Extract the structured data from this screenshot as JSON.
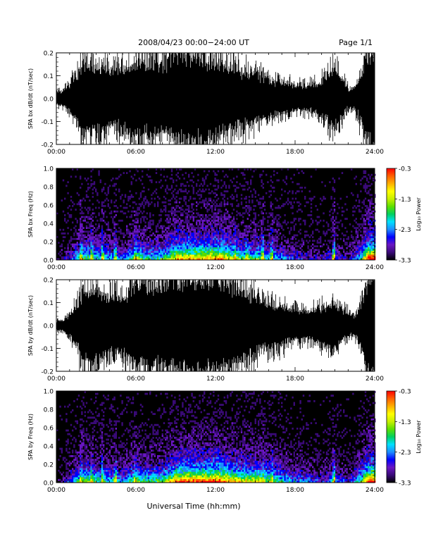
{
  "header": {
    "date_range": "2008/04/23  00:00−24:00 UT",
    "page": "Page 1/1"
  },
  "xaxis_label": "Universal Time (hh:mm)",
  "colors": {
    "waveform": "#000000",
    "spectrogram_background": "#000000",
    "colorbar": [
      "#000000",
      "#3a0a78",
      "#6a16c4",
      "#0000ff",
      "#1e8cff",
      "#00e0ff",
      "#00d060",
      "#5ce000",
      "#c8f000",
      "#ffff00",
      "#ffb000",
      "#ff6000",
      "#ff0000"
    ]
  },
  "chart_data": [
    {
      "type": "line",
      "panel": "bx-waveform",
      "ylabel": "SPA bx dB/dt (nT/sec)",
      "ylim": [
        -0.2,
        0.2
      ],
      "yticks": [
        "-0.2",
        "-0.1",
        "0.0",
        "0.1",
        "0.2"
      ],
      "xlim": [
        0,
        24
      ],
      "xticks": [
        "00:00",
        "06:00",
        "12:00",
        "18:00",
        "24:00"
      ],
      "envelope": {
        "hours": [
          0,
          0.5,
          1,
          1.5,
          2,
          3,
          4,
          5,
          6,
          7,
          8,
          9,
          10,
          11,
          12,
          13,
          14,
          15,
          16,
          17,
          18,
          19,
          20,
          21,
          22,
          22.5,
          23,
          23.5,
          24
        ],
        "amplitude": [
          0.03,
          0.04,
          0.07,
          0.12,
          0.19,
          0.17,
          0.15,
          0.16,
          0.2,
          0.19,
          0.18,
          0.23,
          0.23,
          0.21,
          0.2,
          0.17,
          0.14,
          0.13,
          0.1,
          0.08,
          0.07,
          0.06,
          0.09,
          0.16,
          0.05,
          0.05,
          0.12,
          0.25,
          0.25
        ]
      }
    },
    {
      "type": "heatmap",
      "panel": "bx-spectrogram",
      "ylabel": "SPA bx Freq (Hz)",
      "ylim": [
        0,
        1
      ],
      "yticks": [
        "0.0",
        "0.2",
        "0.4",
        "0.6",
        "0.8",
        "1.0"
      ],
      "xlim": [
        0,
        24
      ],
      "xticks": [
        "00:00",
        "06:00",
        "12:00",
        "18:00",
        "24:00"
      ],
      "colorbar_label": "Log₁₀ Power",
      "colorbar_ticks": [
        "-0.3",
        "-1.3",
        "-2.3",
        "-3.3"
      ],
      "zlim": [
        -3.3,
        -0.3
      ],
      "activity": {
        "hours": [
          0,
          1,
          2,
          3,
          4,
          5,
          6,
          7,
          8,
          9,
          10,
          11,
          12,
          13,
          14,
          15,
          16,
          17,
          18,
          19,
          20,
          21,
          22,
          23,
          23.5,
          24
        ],
        "level": [
          0.05,
          0.25,
          0.55,
          0.45,
          0.4,
          0.3,
          0.6,
          0.45,
          0.5,
          0.75,
          0.8,
          0.75,
          0.85,
          0.7,
          0.55,
          0.55,
          0.45,
          0.35,
          0.25,
          0.2,
          0.2,
          0.3,
          0.15,
          0.5,
          0.95,
          0.95
        ]
      },
      "bursts_hours": [
        1.8,
        2.6,
        3.4,
        4.4,
        5.9,
        9.1,
        10.0,
        10.8,
        11.9,
        12.7,
        13.4,
        14.3,
        15.5,
        16.2,
        20.9,
        23.2,
        23.7
      ]
    },
    {
      "type": "line",
      "panel": "by-waveform",
      "ylabel": "SPA by dB/dt (nT/sec)",
      "ylim": [
        -0.2,
        0.2
      ],
      "yticks": [
        "-0.2",
        "-0.1",
        "0.0",
        "0.1",
        "0.2"
      ],
      "xlim": [
        0,
        24
      ],
      "xticks": [
        "00:00",
        "06:00",
        "12:00",
        "18:00",
        "24:00"
      ],
      "envelope": {
        "hours": [
          0,
          0.5,
          1,
          1.5,
          2,
          3,
          4,
          5,
          6,
          7,
          8,
          9,
          10,
          11,
          12,
          13,
          14,
          15,
          16,
          17,
          18,
          19,
          20,
          21,
          22,
          22.5,
          23,
          23.5,
          24
        ],
        "amplitude": [
          0.02,
          0.03,
          0.05,
          0.1,
          0.18,
          0.2,
          0.15,
          0.15,
          0.22,
          0.23,
          0.2,
          0.25,
          0.25,
          0.25,
          0.25,
          0.22,
          0.18,
          0.15,
          0.12,
          0.1,
          0.08,
          0.07,
          0.09,
          0.12,
          0.06,
          0.05,
          0.12,
          0.25,
          0.25
        ]
      }
    },
    {
      "type": "heatmap",
      "panel": "by-spectrogram",
      "ylabel": "SPA by Freq (Hz)",
      "ylim": [
        0,
        1
      ],
      "yticks": [
        "0.0",
        "0.2",
        "0.4",
        "0.6",
        "0.8",
        "1.0"
      ],
      "xlim": [
        0,
        24
      ],
      "xticks": [
        "00:00",
        "06:00",
        "12:00",
        "18:00",
        "24:00"
      ],
      "colorbar_label": "Log₁₀ Power",
      "colorbar_ticks": [
        "-0.3",
        "-1.3",
        "-2.3",
        "-3.3"
      ],
      "zlim": [
        -3.3,
        -0.3
      ],
      "activity": {
        "hours": [
          0,
          1,
          2,
          3,
          4,
          5,
          6,
          7,
          8,
          9,
          10,
          11,
          12,
          13,
          14,
          15,
          16,
          17,
          18,
          19,
          20,
          21,
          22,
          23,
          23.5,
          24
        ],
        "level": [
          0.05,
          0.3,
          0.6,
          0.5,
          0.45,
          0.35,
          0.6,
          0.5,
          0.55,
          0.85,
          0.9,
          0.85,
          0.95,
          0.8,
          0.7,
          0.7,
          0.55,
          0.45,
          0.35,
          0.3,
          0.25,
          0.35,
          0.2,
          0.55,
          0.95,
          0.95
        ]
      },
      "bursts_hours": [
        1.8,
        2.6,
        3.4,
        4.4,
        5.9,
        9.1,
        10.0,
        10.8,
        11.9,
        12.7,
        13.4,
        14.3,
        15.5,
        16.2,
        20.9,
        23.2,
        23.7
      ]
    }
  ]
}
